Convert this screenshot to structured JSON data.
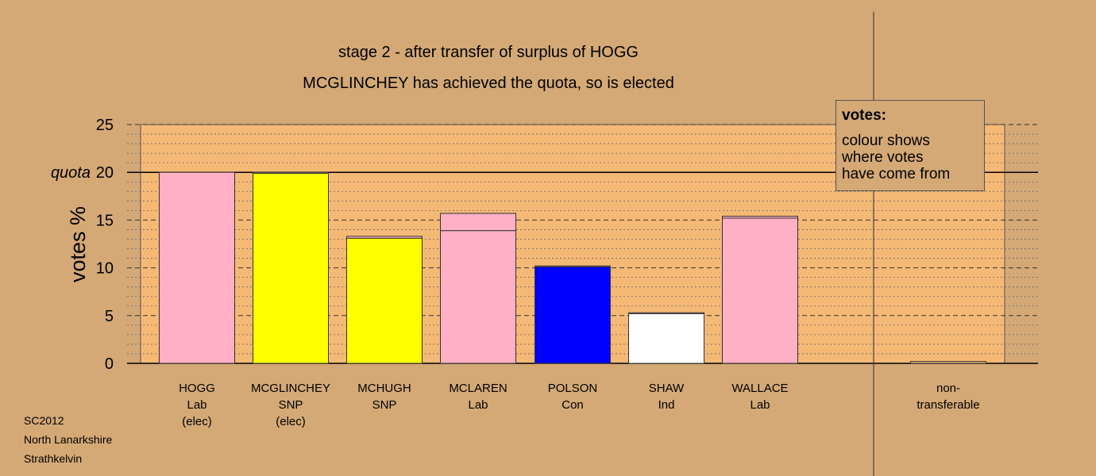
{
  "header": {
    "subtitle": "stage 2 - after transfer of surplus of HOGG",
    "status": "MCGLINCHEY has achieved the quota, so is elected"
  },
  "legend": {
    "heading": "votes:",
    "lines": [
      "colour shows",
      "where votes",
      "have come from"
    ]
  },
  "footer": {
    "lines": [
      "SC2012",
      "North Lanarkshire",
      "Strathkelvin"
    ]
  },
  "colors": {
    "background": "#d4a976",
    "plot_area": "#f5b976",
    "Lab": "#ffb0c4",
    "SNP": "#ffff00",
    "Con": "#0000ff",
    "Ind": "#ffffff",
    "Transfer": "#ffb0c4"
  },
  "chart_data": {
    "type": "bar",
    "stacked": true,
    "ylabel": "votes %",
    "ylim": [
      0,
      25
    ],
    "yticks": [
      0,
      5,
      10,
      15,
      20,
      25
    ],
    "quota": 20,
    "quota_label": "quota",
    "grid": true,
    "categories": [
      {
        "name": "HOGG",
        "party": "Lab",
        "status": "(elec)",
        "segments": [
          {
            "from": "Lab",
            "value": 20.0
          }
        ]
      },
      {
        "name": "MCGLINCHEY",
        "party": "SNP",
        "status": "(elec)",
        "segments": [
          {
            "from": "SNP",
            "value": 19.9
          },
          {
            "from": "Lab",
            "value": 0.1
          }
        ]
      },
      {
        "name": "MCHUGH",
        "party": "SNP",
        "status": "",
        "segments": [
          {
            "from": "SNP",
            "value": 13.1
          },
          {
            "from": "Lab",
            "value": 0.2
          }
        ]
      },
      {
        "name": "MCLAREN",
        "party": "Lab",
        "status": "",
        "segments": [
          {
            "from": "Lab",
            "value": 13.9
          },
          {
            "from": "Lab",
            "value": 1.8
          }
        ]
      },
      {
        "name": "POLSON",
        "party": "Con",
        "status": "",
        "segments": [
          {
            "from": "Con",
            "value": 10.1
          },
          {
            "from": "Lab",
            "value": 0.1
          }
        ]
      },
      {
        "name": "SHAW",
        "party": "Ind",
        "status": "",
        "segments": [
          {
            "from": "Ind",
            "value": 5.2
          },
          {
            "from": "Lab",
            "value": 0.1
          }
        ]
      },
      {
        "name": "WALLACE",
        "party": "Lab",
        "status": "",
        "segments": [
          {
            "from": "Lab",
            "value": 15.2
          },
          {
            "from": "Lab",
            "value": 0.2
          }
        ]
      }
    ],
    "non_transferable": {
      "label_lines": [
        "non-",
        "transferable"
      ],
      "value": 0.2
    }
  }
}
